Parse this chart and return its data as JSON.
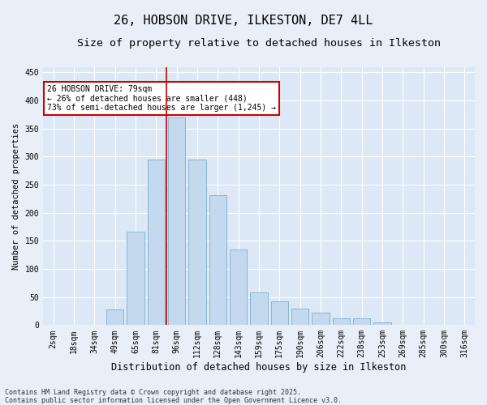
{
  "title": "26, HOBSON DRIVE, ILKESTON, DE7 4LL",
  "subtitle": "Size of property relative to detached houses in Ilkeston",
  "xlabel": "Distribution of detached houses by size in Ilkeston",
  "ylabel": "Number of detached properties",
  "categories": [
    "2sqm",
    "18sqm",
    "34sqm",
    "49sqm",
    "65sqm",
    "81sqm",
    "96sqm",
    "112sqm",
    "128sqm",
    "143sqm",
    "159sqm",
    "175sqm",
    "190sqm",
    "206sqm",
    "222sqm",
    "238sqm",
    "253sqm",
    "269sqm",
    "285sqm",
    "300sqm",
    "316sqm"
  ],
  "values": [
    0,
    0,
    0,
    28,
    167,
    295,
    370,
    295,
    232,
    135,
    58,
    42,
    30,
    22,
    12,
    12,
    5,
    1,
    0,
    0,
    0
  ],
  "bar_color": "#c5d9ee",
  "bar_edge_color": "#7aaed0",
  "bg_color": "#e8eff8",
  "plot_bg_color": "#dce8f5",
  "grid_color": "#ffffff",
  "vline_x": 5.5,
  "vline_color": "#cc0000",
  "annotation_text": "26 HOBSON DRIVE: 79sqm\n← 26% of detached houses are smaller (448)\n73% of semi-detached houses are larger (1,245) →",
  "annotation_box_color": "#cc0000",
  "ylim": [
    0,
    460
  ],
  "yticks": [
    0,
    50,
    100,
    150,
    200,
    250,
    300,
    350,
    400,
    450
  ],
  "footnote": "Contains HM Land Registry data © Crown copyright and database right 2025.\nContains public sector information licensed under the Open Government Licence v3.0.",
  "title_fontsize": 11,
  "subtitle_fontsize": 9.5,
  "xlabel_fontsize": 8.5,
  "ylabel_fontsize": 7.5,
  "tick_fontsize": 7,
  "annotation_fontsize": 7,
  "footnote_fontsize": 6
}
